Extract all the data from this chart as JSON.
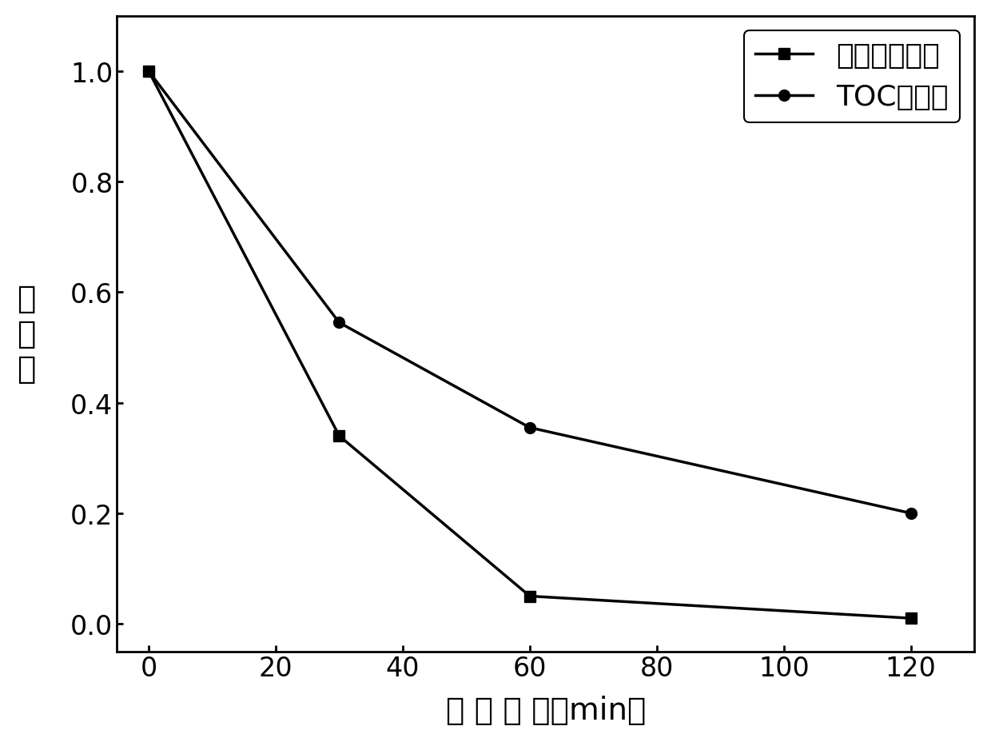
{
  "x": [
    0,
    30,
    60,
    120
  ],
  "visible_light_degradation": [
    1.0,
    0.34,
    0.05,
    0.01
  ],
  "toc_degradation": [
    1.0,
    0.545,
    0.355,
    0.2
  ],
  "xlabel": "反 应 时 间（min）",
  "ylabel_chars": [
    "降",
    "解",
    "率"
  ],
  "xlim": [
    -5,
    130
  ],
  "ylim": [
    -0.05,
    1.1
  ],
  "xticks": [
    0,
    20,
    40,
    60,
    80,
    100,
    120
  ],
  "yticks": [
    0.0,
    0.2,
    0.4,
    0.6,
    0.8,
    1.0
  ],
  "legend_label_square": "可见光降解率",
  "legend_label_circle": "TOC降解率",
  "line_color": "#000000",
  "background_color": "#ffffff",
  "marker_size": 10,
  "line_width": 2.5,
  "xlabel_fontsize": 28,
  "ylabel_fontsize": 28,
  "tick_fontsize": 24,
  "legend_fontsize": 26
}
